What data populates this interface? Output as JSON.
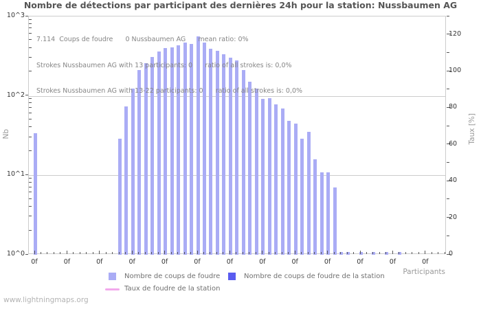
{
  "title": "Nombre de détections par participant des dernières 24h pour la station: Nussbaumen AG",
  "watermark": "www.lightningmaps.org",
  "annotations": {
    "line1": "7.114  Coups de foudre      0 Nussbaumen AG      mean ratio: 0%",
    "line2": "Strokes Nussbaumen AG with 13 participants: 0      ratio of all strokes is: 0,0%",
    "line3": "Strokes Nussbaumen AG with 13-22 participants: 0      ratio of all strokes is: 0,0%"
  },
  "axes": {
    "left_title": "Nb",
    "right_title": "Taux [%]",
    "x_title": "Participants",
    "left_tick_labels": [
      "10^3",
      "10^2",
      "10^1",
      "10^0"
    ],
    "right_tick_labels": [
      "120",
      "100",
      "80",
      "60",
      "40",
      "20",
      "0"
    ],
    "x_tick_label": "0f",
    "x_label_count": 13
  },
  "legend": {
    "items": [
      {
        "label": "Nombre de coups de foudre",
        "color": "#aaacf5",
        "swatch": "square"
      },
      {
        "label": "Nombre de coups de foudre de la station",
        "color": "#5a5cf0",
        "swatch": "square"
      },
      {
        "label": "Taux de foudre de la station",
        "color": "#f2a8ec",
        "swatch": "line"
      }
    ]
  },
  "chart_data": {
    "type": "bar",
    "title": "Nombre de détections par participant des dernières 24h pour la station: Nussbaumen AG",
    "xlabel": "Participants",
    "ylabel_left": "Nb",
    "ylabel_right": "Taux [%]",
    "y_left_scale": "log",
    "y_left_range": [
      1,
      1000
    ],
    "y_right_range": [
      0,
      130
    ],
    "grid": "horizontal decade lines at 10^1 and 10^2",
    "legend_position": "bottom",
    "x_axis_note": "one slot per participant, tick label '0f' every 5 slots",
    "participant_slots": 64,
    "series": [
      {
        "name": "Nombre de coups de foudre",
        "color": "#aaacf5",
        "values": [
          34,
          0,
          0,
          0,
          0,
          0,
          0,
          0,
          0,
          0,
          0,
          0,
          0,
          29,
          74,
          124,
          213,
          260,
          310,
          365,
          400,
          410,
          430,
          465,
          450,
          560,
          465,
          390,
          370,
          337,
          305,
          280,
          211,
          150,
          124,
          91,
          94,
          79,
          70,
          49,
          45,
          29,
          35,
          16,
          11,
          11,
          7,
          1.08,
          1.08,
          0,
          1.08,
          0,
          1.08,
          0,
          1.08,
          0,
          1.08,
          0,
          0,
          0,
          0,
          0,
          0,
          0
        ]
      },
      {
        "name": "Nombre de coups de foudre de la station",
        "color": "#5a5cf0",
        "values": []
      },
      {
        "name": "Taux de foudre de la station",
        "color": "#f2a8ec",
        "type": "line",
        "values": []
      }
    ]
  }
}
